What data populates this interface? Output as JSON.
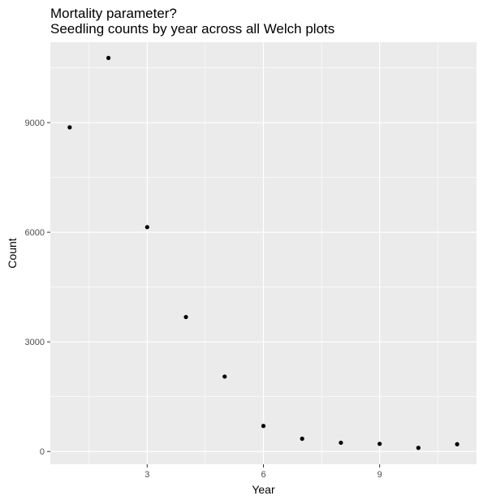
{
  "chart_data": {
    "type": "scatter",
    "title": "Mortality parameter?",
    "subtitle": "Seedling counts by year across all Welch plots",
    "xlabel": "Year",
    "ylabel": "Count",
    "xlim": [
      0.5,
      11.5
    ],
    "ylim": [
      -350,
      11200
    ],
    "x_ticks": [
      3,
      6,
      9
    ],
    "x_minor": [
      1.5,
      4.5,
      7.5,
      10.5
    ],
    "y_ticks": [
      0,
      3000,
      6000,
      9000
    ],
    "y_minor": [
      1500,
      4500,
      7500,
      10500
    ],
    "x_tick_labels": [
      "3",
      "6",
      "9"
    ],
    "y_tick_labels": [
      "0",
      "3000",
      "6000",
      "9000"
    ],
    "grid": true,
    "legend": "none",
    "colors": {
      "panel": "#ebebeb",
      "grid": "#ffffff",
      "point": "#000000"
    },
    "points": [
      {
        "x": 1,
        "y": 8870
      },
      {
        "x": 2,
        "y": 10770
      },
      {
        "x": 3,
        "y": 6140
      },
      {
        "x": 4,
        "y": 3680
      },
      {
        "x": 5,
        "y": 2050
      },
      {
        "x": 6,
        "y": 700
      },
      {
        "x": 7,
        "y": 350
      },
      {
        "x": 8,
        "y": 240
      },
      {
        "x": 9,
        "y": 210
      },
      {
        "x": 10,
        "y": 100
      },
      {
        "x": 11,
        "y": 200
      }
    ]
  }
}
